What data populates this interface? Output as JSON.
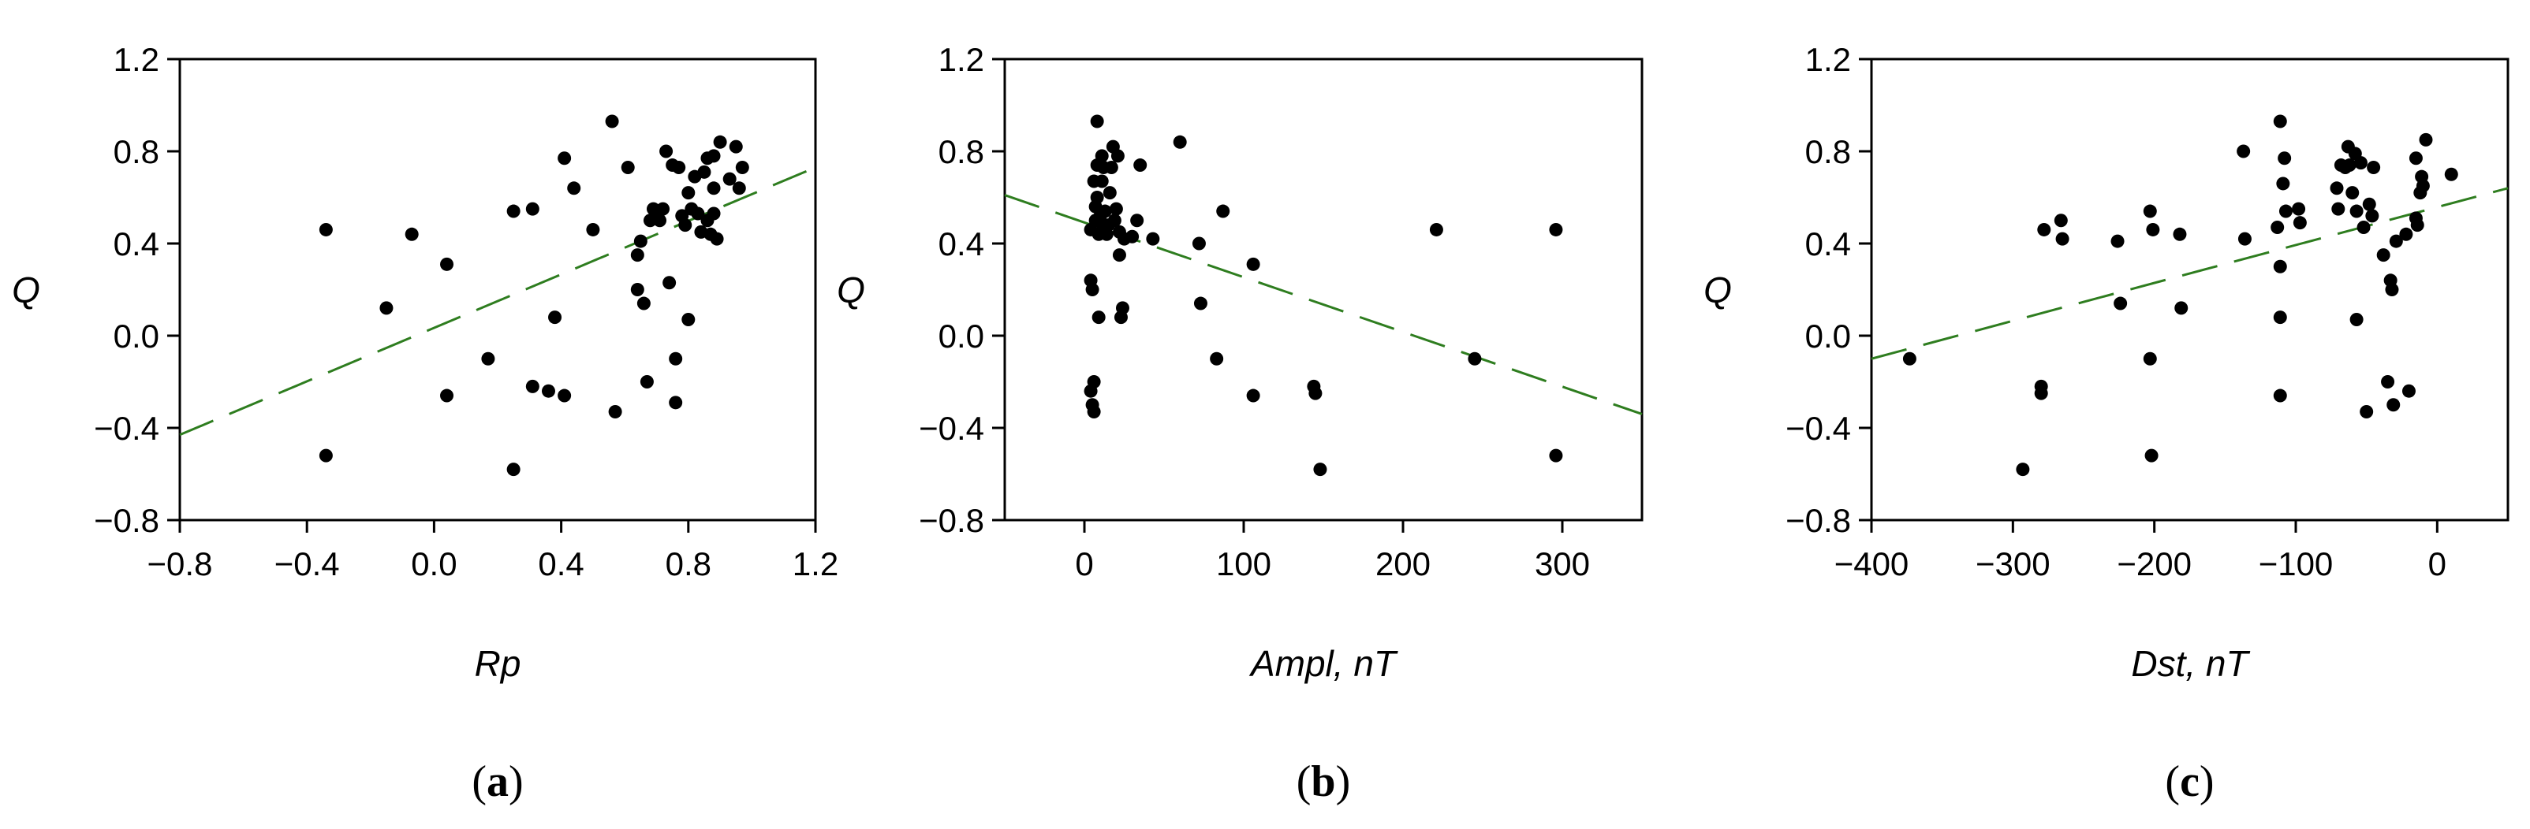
{
  "chart_data": [
    {
      "type": "scatter",
      "panel_label": "a",
      "xlabel": "Rp",
      "ylabel": "Q",
      "xlim": [
        -0.8,
        1.2
      ],
      "ylim": [
        -0.8,
        1.2
      ],
      "xticks": [
        "−0.8",
        "−0.4",
        "0.0",
        "0.4",
        "0.8",
        "1.2"
      ],
      "xtick_values": [
        -0.8,
        -0.4,
        0.0,
        0.4,
        0.8,
        1.2
      ],
      "yticks": [
        "−0.8",
        "−0.4",
        "0.0",
        "0.4",
        "0.8",
        "1.2"
      ],
      "ytick_values": [
        -0.8,
        -0.4,
        0.0,
        0.4,
        0.8,
        1.2
      ],
      "trend": {
        "x": [
          -0.8,
          1.2
        ],
        "y": [
          -0.43,
          0.73
        ]
      },
      "points": [
        [
          -0.34,
          0.46
        ],
        [
          -0.34,
          -0.52
        ],
        [
          -0.15,
          0.12
        ],
        [
          -0.07,
          0.44
        ],
        [
          0.04,
          0.31
        ],
        [
          0.04,
          -0.26
        ],
        [
          0.17,
          -0.1
        ],
        [
          0.25,
          0.54
        ],
        [
          0.25,
          -0.58
        ],
        [
          0.31,
          0.55
        ],
        [
          0.31,
          -0.22
        ],
        [
          0.36,
          -0.24
        ],
        [
          0.38,
          0.08
        ],
        [
          0.41,
          0.77
        ],
        [
          0.41,
          -0.26
        ],
        [
          0.44,
          0.64
        ],
        [
          0.5,
          0.46
        ],
        [
          0.56,
          0.93
        ],
        [
          0.57,
          -0.33
        ],
        [
          0.61,
          0.73
        ],
        [
          0.64,
          0.35
        ],
        [
          0.64,
          0.2
        ],
        [
          0.65,
          0.41
        ],
        [
          0.66,
          0.14
        ],
        [
          0.67,
          -0.2
        ],
        [
          0.68,
          0.5
        ],
        [
          0.69,
          0.55
        ],
        [
          0.7,
          0.52
        ],
        [
          0.71,
          0.5
        ],
        [
          0.72,
          0.55
        ],
        [
          0.73,
          0.8
        ],
        [
          0.74,
          0.23
        ],
        [
          0.75,
          0.74
        ],
        [
          0.76,
          -0.1
        ],
        [
          0.76,
          -0.29
        ],
        [
          0.77,
          0.73
        ],
        [
          0.78,
          0.52
        ],
        [
          0.79,
          0.48
        ],
        [
          0.8,
          0.07
        ],
        [
          0.8,
          0.62
        ],
        [
          0.81,
          0.55
        ],
        [
          0.82,
          0.69
        ],
        [
          0.83,
          0.53
        ],
        [
          0.84,
          0.45
        ],
        [
          0.85,
          0.71
        ],
        [
          0.86,
          0.77
        ],
        [
          0.86,
          0.5
        ],
        [
          0.87,
          0.44
        ],
        [
          0.88,
          0.78
        ],
        [
          0.88,
          0.64
        ],
        [
          0.88,
          0.53
        ],
        [
          0.89,
          0.42
        ],
        [
          0.9,
          0.84
        ],
        [
          0.93,
          0.68
        ],
        [
          0.95,
          0.82
        ],
        [
          0.96,
          0.64
        ],
        [
          0.97,
          0.73
        ]
      ]
    },
    {
      "type": "scatter",
      "panel_label": "b",
      "xlabel": "Ampl, nT",
      "ylabel": "Q",
      "xlim": [
        -50,
        350
      ],
      "ylim": [
        -0.8,
        1.2
      ],
      "xticks": [
        "0",
        "100",
        "200",
        "300"
      ],
      "xtick_values": [
        0,
        100,
        200,
        300
      ],
      "yticks": [
        "−0.8",
        "−0.4",
        "0.0",
        "0.4",
        "0.8",
        "1.2"
      ],
      "ytick_values": [
        -0.8,
        -0.4,
        0.0,
        0.4,
        0.8,
        1.2
      ],
      "trend": {
        "x": [
          -50,
          350
        ],
        "y": [
          0.61,
          -0.34
        ]
      },
      "points": [
        [
          4,
          0.46
        ],
        [
          4,
          0.24
        ],
        [
          4,
          -0.24
        ],
        [
          5,
          -0.3
        ],
        [
          5,
          0.2
        ],
        [
          6,
          -0.2
        ],
        [
          6,
          -0.33
        ],
        [
          6,
          0.67
        ],
        [
          7,
          0.56
        ],
        [
          7,
          0.5
        ],
        [
          8,
          0.93
        ],
        [
          8,
          0.74
        ],
        [
          8,
          0.6
        ],
        [
          9,
          0.44
        ],
        [
          9,
          0.08
        ],
        [
          10,
          0.52
        ],
        [
          11,
          0.78
        ],
        [
          11,
          0.67
        ],
        [
          12,
          0.73
        ],
        [
          12,
          0.47
        ],
        [
          13,
          0.54
        ],
        [
          14,
          0.44
        ],
        [
          15,
          0.48
        ],
        [
          16,
          0.62
        ],
        [
          17,
          0.73
        ],
        [
          18,
          0.82
        ],
        [
          19,
          0.5
        ],
        [
          20,
          0.55
        ],
        [
          21,
          0.78
        ],
        [
          22,
          0.45
        ],
        [
          22,
          0.35
        ],
        [
          23,
          0.08
        ],
        [
          24,
          0.12
        ],
        [
          25,
          0.42
        ],
        [
          30,
          0.43
        ],
        [
          33,
          0.5
        ],
        [
          35,
          0.74
        ],
        [
          43,
          0.42
        ],
        [
          60,
          0.84
        ],
        [
          72,
          0.4
        ],
        [
          73,
          0.14
        ],
        [
          83,
          -0.1
        ],
        [
          87,
          0.54
        ],
        [
          106,
          0.31
        ],
        [
          106,
          -0.26
        ],
        [
          144,
          -0.22
        ],
        [
          145,
          -0.25
        ],
        [
          148,
          -0.58
        ],
        [
          221,
          0.46
        ],
        [
          245,
          -0.1
        ],
        [
          296,
          0.46
        ],
        [
          296,
          -0.52
        ]
      ]
    },
    {
      "type": "scatter",
      "panel_label": "c",
      "xlabel": "Dst, nT",
      "ylabel": "Q",
      "xlim": [
        -400,
        50
      ],
      "ylim": [
        -0.8,
        1.2
      ],
      "xticks": [
        "−400",
        "−300",
        "−200",
        "−100",
        "0"
      ],
      "xtick_values": [
        -400,
        -300,
        -200,
        -100,
        0
      ],
      "yticks": [
        "−0.8",
        "−0.4",
        "0.0",
        "0.4",
        "0.8",
        "1.2"
      ],
      "ytick_values": [
        -0.8,
        -0.4,
        0.0,
        0.4,
        0.8,
        1.2
      ],
      "trend": {
        "x": [
          -400,
          50
        ],
        "y": [
          -0.1,
          0.64
        ]
      },
      "points": [
        [
          -373,
          -0.1
        ],
        [
          -293,
          -0.58
        ],
        [
          -280,
          -0.22
        ],
        [
          -280,
          -0.25
        ],
        [
          -278,
          0.46
        ],
        [
          -266,
          0.5
        ],
        [
          -265,
          0.42
        ],
        [
          -226,
          0.41
        ],
        [
          -224,
          0.14
        ],
        [
          -203,
          0.54
        ],
        [
          -203,
          -0.1
        ],
        [
          -202,
          -0.52
        ],
        [
          -201,
          0.46
        ],
        [
          -182,
          0.44
        ],
        [
          -181,
          0.12
        ],
        [
          -137,
          0.8
        ],
        [
          -136,
          0.42
        ],
        [
          -113,
          0.47
        ],
        [
          -111,
          0.93
        ],
        [
          -111,
          0.3
        ],
        [
          -111,
          0.08
        ],
        [
          -111,
          -0.26
        ],
        [
          -109,
          0.66
        ],
        [
          -108,
          0.77
        ],
        [
          -107,
          0.54
        ],
        [
          -98,
          0.55
        ],
        [
          -97,
          0.49
        ],
        [
          -71,
          0.64
        ],
        [
          -70,
          0.55
        ],
        [
          -68,
          0.74
        ],
        [
          -65,
          0.73
        ],
        [
          -63,
          0.82
        ],
        [
          -62,
          0.74
        ],
        [
          -60,
          0.62
        ],
        [
          -58,
          0.79
        ],
        [
          -57,
          0.54
        ],
        [
          -57,
          0.07
        ],
        [
          -54,
          0.75
        ],
        [
          -52,
          0.47
        ],
        [
          -50,
          -0.33
        ],
        [
          -48,
          0.57
        ],
        [
          -46,
          0.52
        ],
        [
          -45,
          0.73
        ],
        [
          -38,
          0.35
        ],
        [
          -35,
          -0.2
        ],
        [
          -33,
          0.24
        ],
        [
          -32,
          0.2
        ],
        [
          -31,
          -0.3
        ],
        [
          -29,
          0.41
        ],
        [
          -22,
          0.44
        ],
        [
          -20,
          -0.24
        ],
        [
          -15,
          0.77
        ],
        [
          -15,
          0.51
        ],
        [
          -14,
          0.48
        ],
        [
          -12,
          0.62
        ],
        [
          -11,
          0.69
        ],
        [
          -10,
          0.65
        ],
        [
          -8,
          0.85
        ],
        [
          10,
          0.7
        ]
      ]
    }
  ]
}
